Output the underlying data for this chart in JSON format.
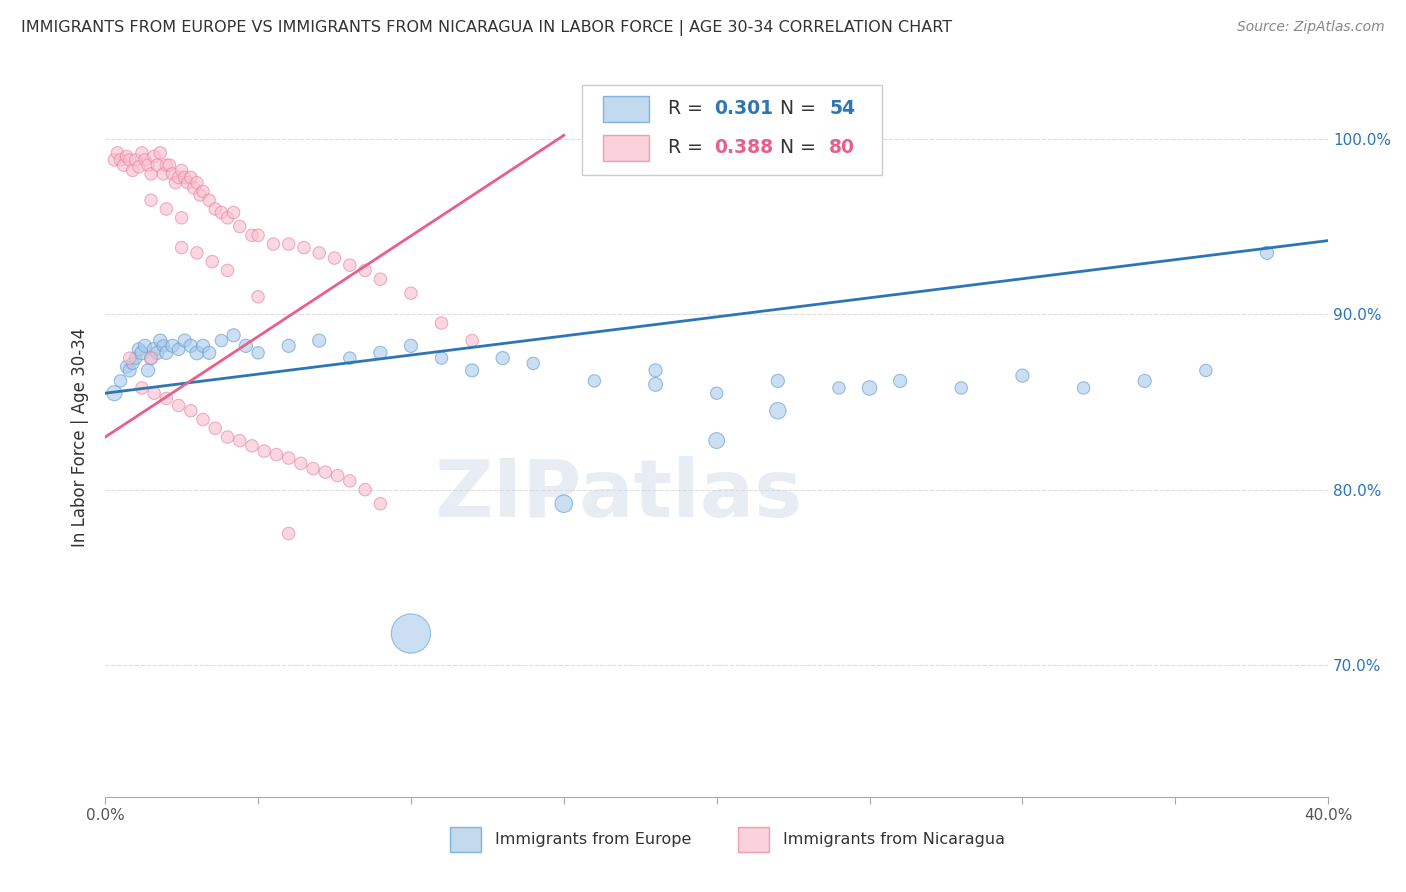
{
  "title": "IMMIGRANTS FROM EUROPE VS IMMIGRANTS FROM NICARAGUA IN LABOR FORCE | AGE 30-34 CORRELATION CHART",
  "source": "Source: ZipAtlas.com",
  "ylabel": "In Labor Force | Age 30-34",
  "xlim": [
    0.0,
    0.4
  ],
  "ylim": [
    0.625,
    1.035
  ],
  "xtick_positions": [
    0.0,
    0.05,
    0.1,
    0.15,
    0.2,
    0.25,
    0.3,
    0.35,
    0.4
  ],
  "xticklabels_show": {
    "0.0": "0.0%",
    "0.40": "40.0%"
  },
  "yticks_right": [
    0.7,
    0.8,
    0.9,
    1.0
  ],
  "ytick_right_labels": [
    "70.0%",
    "80.0%",
    "90.0%",
    "100.0%"
  ],
  "grid_color": "#dedede",
  "background_color": "#ffffff",
  "blue_color": "#aac9e8",
  "pink_color": "#f9bfcc",
  "blue_edge_color": "#5b9bd5",
  "pink_edge_color": "#e87fa0",
  "blue_line_color": "#2e75b6",
  "pink_line_color": "#e8608a",
  "legend_R_blue": "0.301",
  "legend_N_blue": "54",
  "legend_R_pink": "0.388",
  "legend_N_pink": "80",
  "watermark": "ZIPatlas",
  "blue_scatter_x": [
    0.003,
    0.005,
    0.007,
    0.008,
    0.009,
    0.01,
    0.011,
    0.012,
    0.013,
    0.014,
    0.015,
    0.016,
    0.017,
    0.018,
    0.019,
    0.02,
    0.022,
    0.024,
    0.026,
    0.028,
    0.03,
    0.032,
    0.034,
    0.038,
    0.042,
    0.046,
    0.05,
    0.06,
    0.07,
    0.08,
    0.09,
    0.1,
    0.11,
    0.12,
    0.13,
    0.14,
    0.16,
    0.18,
    0.2,
    0.22,
    0.24,
    0.26,
    0.28,
    0.3,
    0.32,
    0.34,
    0.36,
    0.38,
    0.25,
    0.2,
    0.22,
    0.15,
    0.18,
    0.1
  ],
  "blue_scatter_y": [
    0.855,
    0.862,
    0.87,
    0.868,
    0.872,
    0.875,
    0.88,
    0.878,
    0.882,
    0.868,
    0.875,
    0.88,
    0.878,
    0.885,
    0.882,
    0.878,
    0.882,
    0.88,
    0.885,
    0.882,
    0.878,
    0.882,
    0.878,
    0.885,
    0.888,
    0.882,
    0.878,
    0.882,
    0.885,
    0.875,
    0.878,
    0.882,
    0.875,
    0.868,
    0.875,
    0.872,
    0.862,
    0.868,
    0.855,
    0.862,
    0.858,
    0.862,
    0.858,
    0.865,
    0.858,
    0.862,
    0.868,
    0.935,
    0.858,
    0.828,
    0.845,
    0.792,
    0.86,
    0.718
  ],
  "blue_sizes": [
    120,
    80,
    80,
    90,
    80,
    80,
    90,
    100,
    90,
    90,
    90,
    100,
    90,
    90,
    80,
    90,
    90,
    80,
    90,
    90,
    100,
    90,
    90,
    80,
    90,
    90,
    80,
    90,
    90,
    80,
    90,
    90,
    80,
    90,
    90,
    80,
    80,
    90,
    80,
    90,
    80,
    90,
    80,
    90,
    80,
    90,
    80,
    90,
    110,
    130,
    140,
    160,
    100,
    800
  ],
  "pink_scatter_x": [
    0.003,
    0.004,
    0.005,
    0.006,
    0.007,
    0.008,
    0.009,
    0.01,
    0.011,
    0.012,
    0.013,
    0.014,
    0.015,
    0.016,
    0.017,
    0.018,
    0.019,
    0.02,
    0.021,
    0.022,
    0.023,
    0.024,
    0.025,
    0.026,
    0.027,
    0.028,
    0.029,
    0.03,
    0.031,
    0.032,
    0.034,
    0.036,
    0.038,
    0.04,
    0.042,
    0.044,
    0.048,
    0.05,
    0.055,
    0.06,
    0.065,
    0.07,
    0.075,
    0.08,
    0.085,
    0.09,
    0.1,
    0.11,
    0.12,
    0.06,
    0.025,
    0.03,
    0.035,
    0.04,
    0.05,
    0.015,
    0.02,
    0.025,
    0.015,
    0.008,
    0.012,
    0.016,
    0.02,
    0.024,
    0.028,
    0.032,
    0.036,
    0.04,
    0.044,
    0.048,
    0.052,
    0.056,
    0.06,
    0.064,
    0.068,
    0.072,
    0.076,
    0.08,
    0.085,
    0.09
  ],
  "pink_scatter_y": [
    0.988,
    0.992,
    0.988,
    0.985,
    0.99,
    0.988,
    0.982,
    0.988,
    0.984,
    0.992,
    0.988,
    0.985,
    0.98,
    0.99,
    0.985,
    0.992,
    0.98,
    0.985,
    0.985,
    0.98,
    0.975,
    0.978,
    0.982,
    0.978,
    0.975,
    0.978,
    0.972,
    0.975,
    0.968,
    0.97,
    0.965,
    0.96,
    0.958,
    0.955,
    0.958,
    0.95,
    0.945,
    0.945,
    0.94,
    0.94,
    0.938,
    0.935,
    0.932,
    0.928,
    0.925,
    0.92,
    0.912,
    0.895,
    0.885,
    0.775,
    0.938,
    0.935,
    0.93,
    0.925,
    0.91,
    0.965,
    0.96,
    0.955,
    0.875,
    0.875,
    0.858,
    0.855,
    0.852,
    0.848,
    0.845,
    0.84,
    0.835,
    0.83,
    0.828,
    0.825,
    0.822,
    0.82,
    0.818,
    0.815,
    0.812,
    0.81,
    0.808,
    0.805,
    0.8,
    0.792
  ],
  "pink_sizes": [
    80,
    80,
    80,
    80,
    80,
    80,
    80,
    80,
    80,
    80,
    80,
    80,
    80,
    80,
    80,
    80,
    80,
    80,
    80,
    80,
    80,
    80,
    80,
    80,
    80,
    80,
    80,
    80,
    80,
    80,
    80,
    80,
    80,
    80,
    80,
    80,
    80,
    80,
    80,
    80,
    80,
    80,
    80,
    80,
    80,
    80,
    80,
    80,
    80,
    80,
    80,
    80,
    80,
    80,
    80,
    80,
    80,
    80,
    80,
    80,
    80,
    80,
    80,
    80,
    80,
    80,
    80,
    80,
    80,
    80,
    80,
    80,
    80,
    80,
    80,
    80,
    80,
    80,
    80,
    80
  ]
}
